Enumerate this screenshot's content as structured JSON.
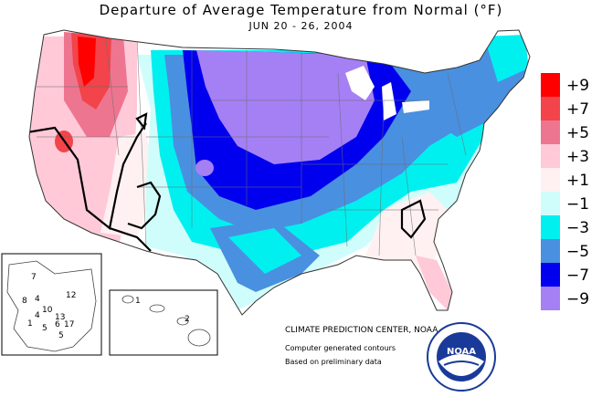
{
  "map": {
    "title": "Departure of Average Temperature from Normal (°F)",
    "subtitle": "JUN 20 - 26, 2004"
  },
  "legend": {
    "items": [
      {
        "label": "+9",
        "color": "#ff0000"
      },
      {
        "label": "+7",
        "color": "#f2444a"
      },
      {
        "label": "+5",
        "color": "#ee7590"
      },
      {
        "label": "+3",
        "color": "#ffc9d8"
      },
      {
        "label": "+1",
        "color": "#fff1f1"
      },
      {
        "label": "−1",
        "color": "#cffdfb"
      },
      {
        "label": "−3",
        "color": "#00f0f0"
      },
      {
        "label": "−5",
        "color": "#4a90e0"
      },
      {
        "label": "−7",
        "color": "#0000ee"
      },
      {
        "label": "−9",
        "color": "#a580f5"
      }
    ]
  },
  "alaska": {
    "station_values": [
      "7",
      "8",
      "12",
      "4",
      "10",
      "1",
      "4",
      "13",
      "5",
      "6",
      "17",
      "5"
    ]
  },
  "hawaii": {
    "station_values": [
      "1",
      "2"
    ]
  },
  "credits": {
    "center": "CLIMATE PREDICTION CENTER, NOAA",
    "note1": "Computer generated contours",
    "note2": "Based on preliminary data"
  },
  "logo": {
    "text": "NOAA"
  }
}
